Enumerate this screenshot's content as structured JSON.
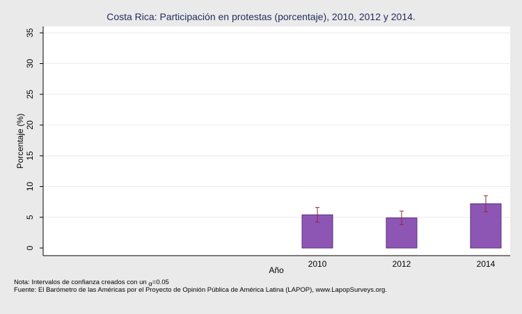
{
  "chart_data": {
    "type": "bar",
    "title": "Costa Rica: Participación en protestas (porcentaje), 2010, 2012 y 2014.",
    "xlabel": "Año",
    "ylabel": "Porcentaje (%)",
    "categories": [
      "2010",
      "2012",
      "2014"
    ],
    "values": [
      5.4,
      4.9,
      7.2
    ],
    "ci_lower": [
      4.2,
      3.8,
      5.9
    ],
    "ci_upper": [
      6.6,
      6.0,
      8.5
    ],
    "ylim": [
      0,
      36
    ],
    "yticks": [
      "0",
      "5",
      "10",
      "15",
      "20",
      "25",
      "30",
      "35"
    ],
    "grid": true,
    "bar_color": "#8e56b4",
    "bar_edge_color": "#5a2c7a",
    "errorbar_color": "#8b2a35"
  },
  "footnotes": {
    "note_prefix": "Nota: Intervalos de confianza creados con un ",
    "alpha_symbol": "α",
    "alpha_value": "=0.05",
    "source": "Fuente: El Barómetro de las Américas por el Proyecto de Opinión Pública de América Latina (LAPOP), www.LapopSurveys.org."
  }
}
